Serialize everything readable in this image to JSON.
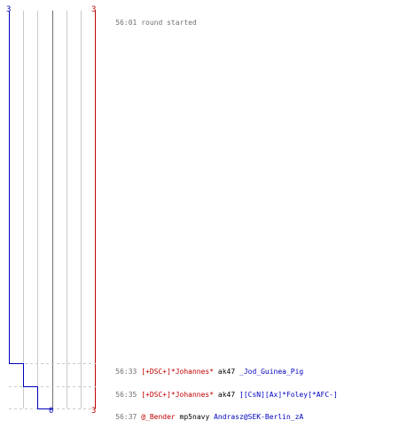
{
  "colors": {
    "blue": "#0000c0",
    "red": "#c00000",
    "time": "#707070",
    "grid": "#c8c8c8",
    "zero_line": "#707070",
    "row_dash": "#c8c8c8",
    "weapon": "#000000"
  },
  "axis": {
    "blue_top": "3",
    "red_top": "3",
    "zero_bottom": "0",
    "red_bottom": "3"
  },
  "events": [
    {
      "time": "56:01",
      "text": "round started",
      "type": "info"
    },
    {
      "time": "56:33",
      "killer": "[+DSC+]*Johannes*",
      "killer_team": "red",
      "weapon": "ak47",
      "victim": "_Jod_Guinea_Pig",
      "victim_team": "blue"
    },
    {
      "time": "56:35",
      "killer": "[+DSC+]*Johannes*",
      "killer_team": "red",
      "weapon": "ak47",
      "victim": "][CsN][Ax]*Foley[*AFC-]",
      "victim_team": "blue"
    },
    {
      "time": "56:37",
      "killer": "@_Bender",
      "killer_team": "red",
      "weapon": "mp5navy",
      "victim": "Andrasz@SEK-Berlin_zA",
      "victim_team": "blue"
    }
  ]
}
